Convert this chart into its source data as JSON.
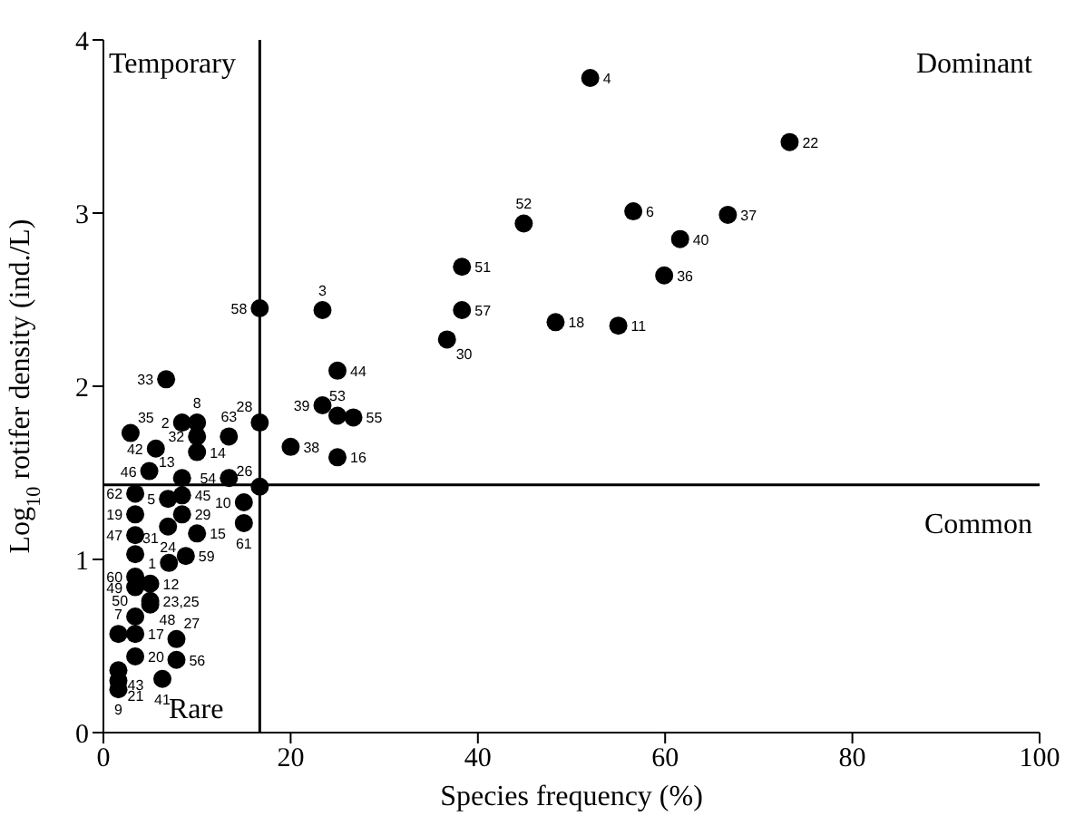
{
  "chart_data": {
    "type": "scatter",
    "xlabel": "Species frequency (%)",
    "ylabel": "Log$_{10}$ rotifer density (ind./L)",
    "xlim": [
      0,
      100
    ],
    "xticks": [
      0,
      20,
      40,
      60,
      80,
      100
    ],
    "ylim": [
      0,
      4
    ],
    "yticks": [
      0,
      1,
      2,
      3,
      4
    ],
    "grid": false,
    "legend": false,
    "marker": "circle",
    "ref_lines": [
      {
        "axis": "x",
        "value": 16.7,
        "color": "#000000"
      },
      {
        "axis": "y",
        "value": 1.43,
        "color": "#000000"
      }
    ],
    "annotations": [
      "Temporary",
      "Dominant",
      "Common",
      "Rare",
      {
        "text": "1",
        "x": 7.0,
        "y": 0.98
      },
      {
        "text": "2",
        "x": 8.4,
        "y": 1.79
      },
      {
        "text": "3",
        "x": 23.4,
        "y": 2.44
      },
      {
        "text": "4",
        "x": 52.0,
        "y": 3.78
      },
      {
        "text": "5",
        "x": 6.9,
        "y": 1.35
      },
      {
        "text": "6",
        "x": 56.6,
        "y": 3.01
      },
      {
        "text": "7",
        "x": 1.6,
        "y": 0.57
      },
      {
        "text": "8",
        "x": 10.0,
        "y": 1.79
      },
      {
        "text": "9",
        "x": 1.6,
        "y": 0.25
      },
      {
        "text": "10",
        "x": 15.0,
        "y": 1.33
      },
      {
        "text": "11",
        "x": 55.0,
        "y": 2.35
      },
      {
        "text": "12",
        "x": 5.0,
        "y": 0.86
      },
      {
        "text": "13",
        "x": 8.4,
        "y": 1.47
      },
      {
        "text": "14",
        "x": 10.0,
        "y": 1.62
      },
      {
        "text": "15",
        "x": 10.0,
        "y": 1.15
      },
      {
        "text": "16",
        "x": 25.0,
        "y": 1.59
      },
      {
        "text": "17",
        "x": 3.4,
        "y": 0.57
      },
      {
        "text": "18",
        "x": 48.3,
        "y": 2.37
      },
      {
        "text": "19",
        "x": 3.4,
        "y": 1.26
      },
      {
        "text": "20",
        "x": 3.4,
        "y": 0.44
      },
      {
        "text": "21",
        "x": 1.6,
        "y": 0.3
      },
      {
        "text": "22",
        "x": 73.3,
        "y": 3.41
      },
      {
        "text": "23,25",
        "x": 5.0,
        "y": 0.76
      },
      {
        "text": "24",
        "x": 6.9,
        "y": 1.19
      },
      {
        "text": "26",
        "x": 16.7,
        "y": 1.42
      },
      {
        "text": "27",
        "x": 7.8,
        "y": 0.54
      },
      {
        "text": "28",
        "x": 16.7,
        "y": 1.79
      },
      {
        "text": "29",
        "x": 8.4,
        "y": 1.26
      },
      {
        "text": "30",
        "x": 36.7,
        "y": 2.27
      },
      {
        "text": "31",
        "x": 3.4,
        "y": 1.03
      },
      {
        "text": "32",
        "x": 10.0,
        "y": 1.71
      },
      {
        "text": "33",
        "x": 6.7,
        "y": 2.04
      },
      {
        "text": "35",
        "x": 2.9,
        "y": 1.73
      },
      {
        "text": "36",
        "x": 59.9,
        "y": 2.64
      },
      {
        "text": "37",
        "x": 66.7,
        "y": 2.99
      },
      {
        "text": "38",
        "x": 20.0,
        "y": 1.65
      },
      {
        "text": "39",
        "x": 23.4,
        "y": 1.89
      },
      {
        "text": "40",
        "x": 61.6,
        "y": 2.85
      },
      {
        "text": "41",
        "x": 6.3,
        "y": 0.31
      },
      {
        "text": "42",
        "x": 5.6,
        "y": 1.64
      },
      {
        "text": "43",
        "x": 1.6,
        "y": 0.36
      },
      {
        "text": "44",
        "x": 25.0,
        "y": 2.09
      },
      {
        "text": "45",
        "x": 8.4,
        "y": 1.37
      },
      {
        "text": "46",
        "x": 4.9,
        "y": 1.51
      },
      {
        "text": "47",
        "x": 3.4,
        "y": 1.14
      },
      {
        "text": "48",
        "x": 5.0,
        "y": 0.74
      },
      {
        "text": "49",
        "x": 3.4,
        "y": 0.84
      },
      {
        "text": "50",
        "x": 3.4,
        "y": 0.67
      },
      {
        "text": "51",
        "x": 38.3,
        "y": 2.69
      },
      {
        "text": "52",
        "x": 44.9,
        "y": 2.94
      },
      {
        "text": "53",
        "x": 25.0,
        "y": 1.83
      },
      {
        "text": "54",
        "x": 13.4,
        "y": 1.47
      },
      {
        "text": "55",
        "x": 26.7,
        "y": 1.82
      },
      {
        "text": "56",
        "x": 7.8,
        "y": 0.42
      },
      {
        "text": "57",
        "x": 38.3,
        "y": 2.44
      },
      {
        "text": "58",
        "x": 16.7,
        "y": 2.45
      },
      {
        "text": "59",
        "x": 8.8,
        "y": 1.02
      },
      {
        "text": "60",
        "x": 3.4,
        "y": 0.9
      },
      {
        "text": "61",
        "x": 15.0,
        "y": 1.21
      },
      {
        "text": "62",
        "x": 3.4,
        "y": 1.38
      },
      {
        "text": "63",
        "x": 13.4,
        "y": 1.71
      }
    ],
    "series": [
      {
        "color": "#000000",
        "x": [
          7.0,
          8.4,
          23.4,
          52.0,
          6.9,
          56.6,
          1.6,
          10.0,
          1.6,
          15.0,
          55.0,
          5.0,
          8.4,
          10.0,
          10.0,
          25.0,
          3.4,
          48.3,
          3.4,
          3.4,
          1.6,
          73.3,
          5.0,
          6.9,
          16.7,
          7.8,
          16.7,
          8.4,
          36.7,
          3.4,
          10.0,
          6.7,
          2.9,
          59.9,
          66.7,
          20.0,
          23.4,
          61.6,
          6.3,
          5.6,
          1.6,
          25.0,
          8.4,
          4.9,
          3.4,
          5.0,
          3.4,
          3.4,
          38.3,
          44.9,
          25.0,
          13.4,
          26.7,
          7.8,
          38.3,
          16.7,
          8.8,
          3.4,
          15.0,
          3.4,
          13.4
        ],
        "values": [
          0.98,
          1.79,
          2.44,
          3.78,
          1.35,
          3.01,
          0.57,
          1.79,
          0.25,
          1.33,
          2.35,
          0.86,
          1.47,
          1.62,
          1.15,
          1.59,
          0.57,
          2.37,
          1.26,
          0.44,
          0.3,
          3.41,
          0.76,
          1.19,
          1.42,
          0.54,
          1.79,
          1.26,
          2.27,
          1.03,
          1.71,
          2.04,
          1.73,
          2.64,
          2.99,
          1.65,
          1.89,
          2.85,
          0.31,
          1.64,
          0.36,
          2.09,
          1.37,
          1.51,
          1.14,
          0.74,
          0.84,
          0.67,
          2.69,
          2.94,
          1.83,
          1.47,
          1.82,
          0.42,
          2.44,
          2.45,
          1.02,
          0.9,
          1.21,
          1.38,
          1.71
        ]
      }
    ]
  }
}
